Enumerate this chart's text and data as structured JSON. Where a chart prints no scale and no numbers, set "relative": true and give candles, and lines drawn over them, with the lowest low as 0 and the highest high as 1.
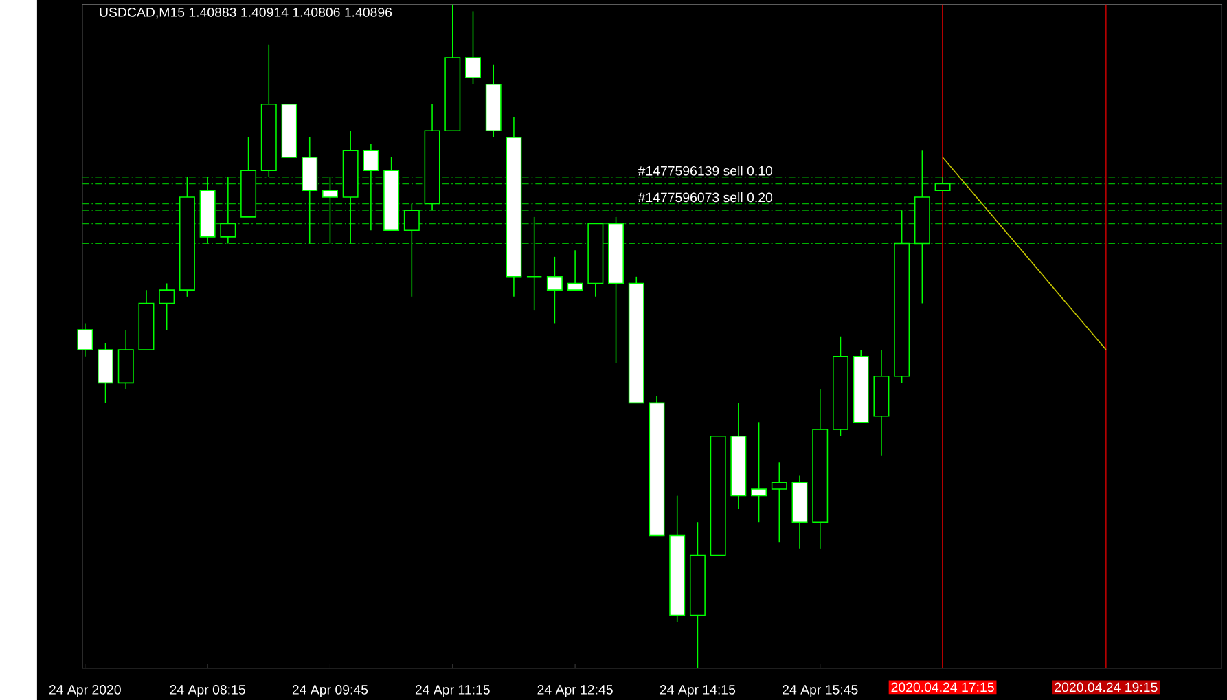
{
  "chart_data": {
    "type": "candlestick",
    "title": "USDCAD,M15  1.40883 1.40914 1.40806 1.40896",
    "relative": true,
    "x": [
      "2020-04-24T06:45",
      "2020-04-24T07:00",
      "2020-04-24T07:15",
      "2020-04-24T07:30",
      "2020-04-24T07:45",
      "2020-04-24T08:00",
      "2020-04-24T08:15",
      "2020-04-24T08:30",
      "2020-04-24T08:45",
      "2020-04-24T09:00",
      "2020-04-24T09:15",
      "2020-04-24T09:30",
      "2020-04-24T09:45",
      "2020-04-24T10:00",
      "2020-04-24T10:15",
      "2020-04-24T10:30",
      "2020-04-24T10:45",
      "2020-04-24T11:00",
      "2020-04-24T11:15",
      "2020-04-24T11:30",
      "2020-04-24T11:45",
      "2020-04-24T12:00",
      "2020-04-24T12:15",
      "2020-04-24T12:30",
      "2020-04-24T12:45",
      "2020-04-24T13:00",
      "2020-04-24T13:15",
      "2020-04-24T13:30",
      "2020-04-24T13:45",
      "2020-04-24T14:00",
      "2020-04-24T14:15",
      "2020-04-24T14:30",
      "2020-04-24T14:45",
      "2020-04-24T15:00",
      "2020-04-24T15:15",
      "2020-04-24T15:30",
      "2020-04-24T15:45",
      "2020-04-24T16:00",
      "2020-04-24T16:15",
      "2020-04-24T16:30",
      "2020-04-24T16:45",
      "2020-04-24T17:00",
      "2020-04-24T17:15"
    ],
    "xlim": [
      "2020-04-24T06:43",
      "2020-04-24T20:40"
    ],
    "xticks": [
      {
        "value": "2020-04-24T06:45",
        "label": "24 Apr 2020"
      },
      {
        "value": "2020-04-24T08:15",
        "label": "24 Apr 08:15"
      },
      {
        "value": "2020-04-24T09:45",
        "label": "24 Apr 09:45"
      },
      {
        "value": "2020-04-24T11:15",
        "label": "24 Apr 11:15"
      },
      {
        "value": "2020-04-24T12:45",
        "label": "24 Apr 12:45"
      },
      {
        "value": "2020-04-24T14:15",
        "label": "24 Apr 14:15"
      },
      {
        "value": "2020-04-24T15:45",
        "label": "24 Apr 15:45"
      }
    ],
    "series": [
      {
        "color": "#00ff00",
        "ohlc": [
          [
            0.51,
            0.52,
            0.47,
            0.48
          ],
          [
            0.48,
            0.49,
            0.4,
            0.43
          ],
          [
            0.43,
            0.51,
            0.42,
            0.48
          ],
          [
            0.48,
            0.57,
            0.48,
            0.55
          ],
          [
            0.55,
            0.58,
            0.51,
            0.57
          ],
          [
            0.57,
            0.74,
            0.56,
            0.71
          ],
          [
            0.72,
            0.74,
            0.64,
            0.65
          ],
          [
            0.65,
            0.74,
            0.64,
            0.67
          ],
          [
            0.68,
            0.8,
            0.68,
            0.75
          ],
          [
            0.75,
            0.94,
            0.74,
            0.85
          ],
          [
            0.85,
            0.85,
            0.77,
            0.77
          ],
          [
            0.77,
            0.8,
            0.64,
            0.72
          ],
          [
            0.72,
            0.74,
            0.64,
            0.71
          ],
          [
            0.71,
            0.81,
            0.64,
            0.78
          ],
          [
            0.78,
            0.79,
            0.66,
            0.75
          ],
          [
            0.75,
            0.77,
            0.66,
            0.66
          ],
          [
            0.66,
            0.7,
            0.56,
            0.69
          ],
          [
            0.7,
            0.85,
            0.69,
            0.81
          ],
          [
            0.81,
            1.0,
            0.81,
            0.92
          ],
          [
            0.92,
            0.99,
            0.88,
            0.89
          ],
          [
            0.88,
            0.91,
            0.8,
            0.81
          ],
          [
            0.8,
            0.83,
            0.56,
            0.59
          ],
          [
            0.59,
            0.68,
            0.54,
            0.59
          ],
          [
            0.59,
            0.62,
            0.52,
            0.57
          ],
          [
            0.58,
            0.63,
            0.57,
            0.57
          ],
          [
            0.58,
            0.67,
            0.56,
            0.67
          ],
          [
            0.67,
            0.68,
            0.46,
            0.58
          ],
          [
            0.58,
            0.59,
            0.4,
            0.4
          ],
          [
            0.4,
            0.41,
            0.2,
            0.2
          ],
          [
            0.2,
            0.26,
            0.07,
            0.08
          ],
          [
            0.08,
            0.22,
            0.0,
            0.17
          ],
          [
            0.17,
            0.35,
            0.17,
            0.35
          ],
          [
            0.35,
            0.4,
            0.24,
            0.26
          ],
          [
            0.27,
            0.37,
            0.22,
            0.26
          ],
          [
            0.27,
            0.31,
            0.19,
            0.28
          ],
          [
            0.28,
            0.29,
            0.18,
            0.22
          ],
          [
            0.22,
            0.42,
            0.18,
            0.36
          ],
          [
            0.36,
            0.5,
            0.35,
            0.47
          ],
          [
            0.47,
            0.48,
            0.37,
            0.37
          ],
          [
            0.38,
            0.48,
            0.32,
            0.44
          ],
          [
            0.44,
            0.69,
            0.43,
            0.64
          ],
          [
            0.64,
            0.78,
            0.55,
            0.71
          ],
          [
            0.72,
            0.74,
            0.72,
            0.73
          ]
        ]
      },
      {
        "type": "line",
        "color": "#c8c800",
        "x": [
          "2020-04-24T17:15",
          "2020-04-24T19:15"
        ],
        "values": [
          0.77,
          0.48
        ]
      }
    ],
    "ref_lines": [
      {
        "axis": "y",
        "value": 0.74,
        "label": "#1477596139 sell 0.10",
        "color": "#00b000",
        "line_style": "dashed"
      },
      {
        "axis": "y",
        "value": 0.73,
        "color": "#00b000",
        "line_style": "dashed"
      },
      {
        "axis": "y",
        "value": 0.7,
        "label": "#1477596073 sell 0.20",
        "color": "#00b000",
        "line_style": "dashed"
      },
      {
        "axis": "y",
        "value": 0.69,
        "color": "#00b000",
        "line_style": "dashed"
      },
      {
        "axis": "y",
        "value": 0.67,
        "color": "#00b000",
        "line_style": "dashed"
      },
      {
        "axis": "y",
        "value": 0.64,
        "color": "#00b000",
        "line_style": "dashed"
      },
      {
        "axis": "x",
        "value": "2020-04-24T17:15",
        "label": "2020.04.24 17:15",
        "color": "#ff0000",
        "line_style": "solid"
      },
      {
        "axis": "x",
        "value": "2020-04-24T19:15",
        "label": "2020.04.24 19:15",
        "color": "#c00000",
        "line_style": "solid"
      }
    ]
  }
}
